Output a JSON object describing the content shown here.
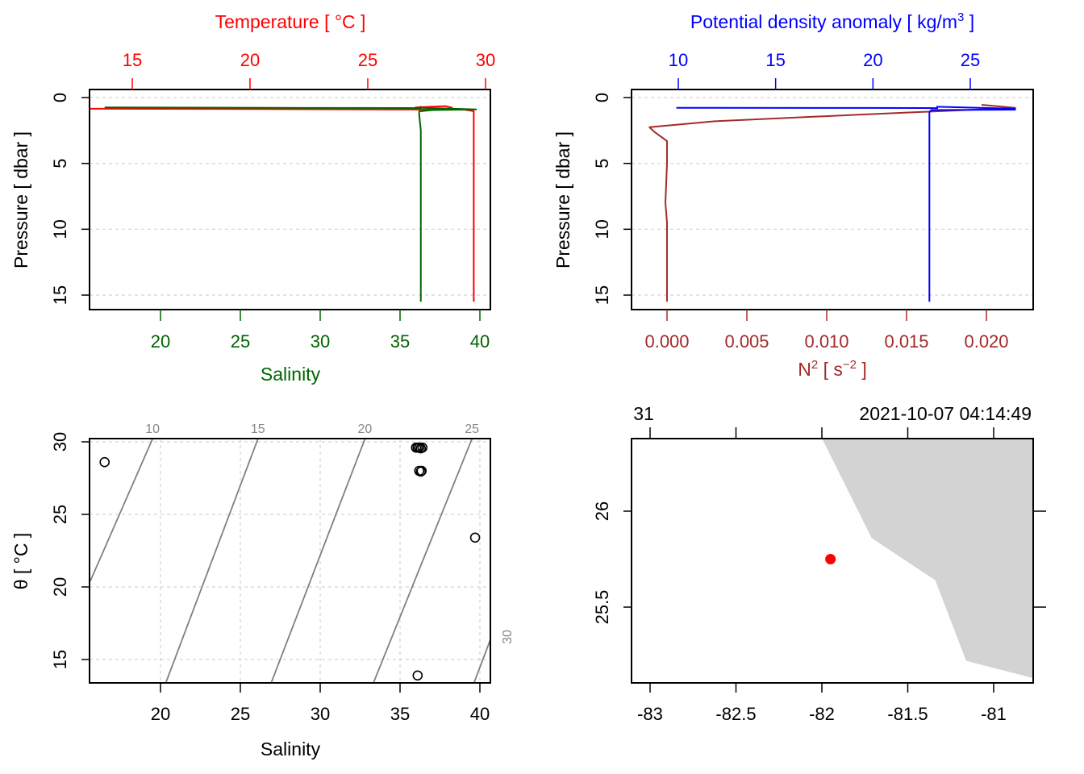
{
  "colors": {
    "temperature": "#ff0000",
    "salinity": "#006400",
    "density": "#0000ff",
    "n2": "#a52a2a",
    "isopycnal": "#808080",
    "land": "#d3d3d3",
    "station": "#ff0000",
    "frame": "#000000",
    "grid": "#d3d3d3"
  },
  "chart_data": [
    {
      "id": "profile-temperature-salinity",
      "type": "line",
      "title": "",
      "y_axis": {
        "label": "Pressure [ dbar ]",
        "range": [
          16.3,
          -0.6
        ],
        "ticks": [
          0,
          5,
          10,
          15
        ],
        "tick_labels": [
          "0",
          "5",
          "10",
          "15"
        ],
        "reversed": true
      },
      "top_axis": {
        "label": "Temperature [ °C ]",
        "ticks": [
          15,
          20,
          25,
          30
        ],
        "tick_labels": [
          "15",
          "20",
          "25",
          "30"
        ],
        "range": [
          13.4,
          30.2
        ]
      },
      "bottom_axis": {
        "label": "Salinity",
        "ticks": [
          20,
          25,
          30,
          35,
          40
        ],
        "tick_labels": [
          "20",
          "25",
          "30",
          "35",
          "40"
        ],
        "range": [
          15.6,
          40.7
        ]
      },
      "grid": true,
      "series": [
        {
          "name": "Temperature",
          "axis": "top",
          "points": [
            [
              13.2,
              0.85
            ],
            [
              20,
              0.87
            ],
            [
              25,
              0.9
            ],
            [
              29.1,
              0.92
            ],
            [
              29.4,
              1.0
            ],
            [
              29.5,
              1.05
            ],
            [
              29.5,
              3
            ],
            [
              29.5,
              8
            ],
            [
              29.5,
              10
            ],
            [
              29.5,
              15.5
            ]
          ],
          "surface_spike": [
            [
              27.0,
              0.75
            ],
            [
              28.3,
              0.65
            ],
            [
              28.6,
              0.78
            ]
          ]
        },
        {
          "name": "Salinity",
          "axis": "bottom",
          "points": [
            [
              16.5,
              0.75
            ],
            [
              25,
              0.77
            ],
            [
              30,
              0.79
            ],
            [
              36.3,
              0.8
            ],
            [
              36.3,
              0.72
            ],
            [
              36.4,
              0.78
            ],
            [
              39.8,
              0.9
            ],
            [
              37,
              0.95
            ],
            [
              36.2,
              1.05
            ],
            [
              36.2,
              1.3
            ],
            [
              36.3,
              2.5
            ],
            [
              36.3,
              8
            ],
            [
              36.3,
              15.5
            ]
          ]
        }
      ]
    },
    {
      "id": "profile-density-n2",
      "type": "line",
      "title": "",
      "y_axis": {
        "label": "Pressure [ dbar ]",
        "range": [
          16.3,
          -0.6
        ],
        "ticks": [
          0,
          5,
          10,
          15
        ],
        "tick_labels": [
          "0",
          "5",
          "10",
          "15"
        ],
        "reversed": true
      },
      "top_axis": {
        "label": "Potential density anomaly [ kg/m³ ]",
        "label_main": "Potential density anomaly [ kg/m",
        "label_sup": "3",
        "label_end": " ]",
        "ticks": [
          10,
          15,
          20,
          25
        ],
        "tick_labels": [
          "10",
          "15",
          "20",
          "25"
        ],
        "range": [
          7.6,
          28.2
        ]
      },
      "bottom_axis": {
        "label": "N² [ s⁻² ]",
        "label_main": "N",
        "label_sup1": "2",
        "label_mid": " [ s",
        "label_sup2": "−2",
        "label_end": " ]",
        "ticks": [
          0,
          0.005,
          0.01,
          0.015,
          0.02
        ],
        "tick_labels": [
          "0.000",
          "0.005",
          "0.010",
          "0.015",
          "0.020"
        ],
        "range": [
          -0.00223,
          0.02293
        ]
      },
      "grid": true,
      "series": [
        {
          "name": "Potential density anomaly",
          "axis": "top",
          "points": [
            [
              9.9,
              0.78
            ],
            [
              20,
              0.79
            ],
            [
              23.3,
              0.8
            ],
            [
              23.3,
              0.7
            ],
            [
              27.3,
              0.85
            ],
            [
              27.3,
              0.92
            ],
            [
              23.0,
              0.95
            ],
            [
              22.9,
              1.1
            ],
            [
              22.9,
              2
            ],
            [
              22.9,
              8
            ],
            [
              22.9,
              15.5
            ]
          ]
        },
        {
          "name": "N2",
          "axis": "bottom",
          "points": [
            [
              0.0197,
              0.55
            ],
            [
              0.0218,
              0.78
            ],
            [
              0.02,
              0.88
            ],
            [
              0.012,
              1.3
            ],
            [
              0.003,
              1.8
            ],
            [
              -0.0011,
              2.25
            ],
            [
              -0.0008,
              2.6
            ],
            [
              0.0,
              3.3
            ],
            [
              0.0,
              5
            ],
            [
              -0.0001,
              8
            ],
            [
              0.0,
              9.5
            ],
            [
              0.0,
              15.5
            ]
          ]
        }
      ]
    },
    {
      "id": "ts-diagram",
      "type": "scatter",
      "title": "",
      "x_axis": {
        "label": "Salinity",
        "ticks": [
          20,
          25,
          30,
          35,
          40
        ],
        "tick_labels": [
          "20",
          "25",
          "30",
          "35",
          "40"
        ],
        "range": [
          15.6,
          40.7
        ]
      },
      "y_axis": {
        "label": "θ [ °C ]",
        "ticks": [
          15,
          20,
          25,
          30
        ],
        "tick_labels": [
          "15",
          "20",
          "25",
          "30"
        ],
        "range": [
          13.3,
          30.2
        ]
      },
      "grid": true,
      "points": [
        [
          16.5,
          28.6
        ],
        [
          36.0,
          29.6
        ],
        [
          36.1,
          29.6
        ],
        [
          36.2,
          29.6
        ],
        [
          36.3,
          29.55
        ],
        [
          36.4,
          29.6
        ],
        [
          36.2,
          28.0
        ],
        [
          36.3,
          27.95
        ],
        [
          36.35,
          28.0
        ],
        [
          39.7,
          23.4
        ],
        [
          36.1,
          13.9
        ]
      ],
      "isopycnals": [
        {
          "sigma": 10,
          "label": "10",
          "endpoints": [
            [
              19.5,
              30.2
            ],
            [
              15.6,
              20.4
            ]
          ]
        },
        {
          "sigma": 15,
          "label": "15",
          "endpoints": [
            [
              26.1,
              30.2
            ],
            [
              20.3,
              13.3
            ]
          ]
        },
        {
          "sigma": 20,
          "label": "20",
          "endpoints": [
            [
              32.8,
              30.2
            ],
            [
              26.9,
              13.3
            ]
          ]
        },
        {
          "sigma": 25,
          "label": "25",
          "endpoints": [
            [
              39.5,
              30.2
            ],
            [
              33.3,
              13.3
            ]
          ]
        },
        {
          "sigma": 30,
          "label": "30",
          "endpoints": [
            [
              40.7,
              16.5
            ],
            [
              39.6,
              13.3
            ]
          ]
        }
      ]
    },
    {
      "id": "station-map",
      "type": "scatter",
      "title": "",
      "x_axis": {
        "label": "",
        "ticks": [
          -83,
          -82.5,
          -82,
          -81.5,
          -81
        ],
        "tick_labels": [
          "-83",
          "-82.5",
          "-82",
          "-81.5",
          "-81"
        ],
        "range": [
          -83.11,
          -80.77
        ]
      },
      "y_axis": {
        "label": "",
        "ticks": [
          25.5,
          26
        ],
        "tick_labels": [
          "25.5",
          "26"
        ],
        "range": [
          25.12,
          26.38
        ]
      },
      "top_axis": {
        "tick_labels": [
          "31",
          "",
          "",
          "2021-10-07 04:14:49",
          ""
        ],
        "left_label": "31",
        "right_label": "2021-10-07 04:14:49"
      },
      "station": {
        "lon": -81.95,
        "lat": 25.75
      },
      "coastline": [
        [
          -82.0,
          26.38
        ],
        [
          -81.71,
          25.86
        ],
        [
          -81.34,
          25.64
        ],
        [
          -81.16,
          25.22
        ],
        [
          -80.77,
          25.13
        ],
        [
          -80.77,
          26.38
        ]
      ]
    }
  ]
}
